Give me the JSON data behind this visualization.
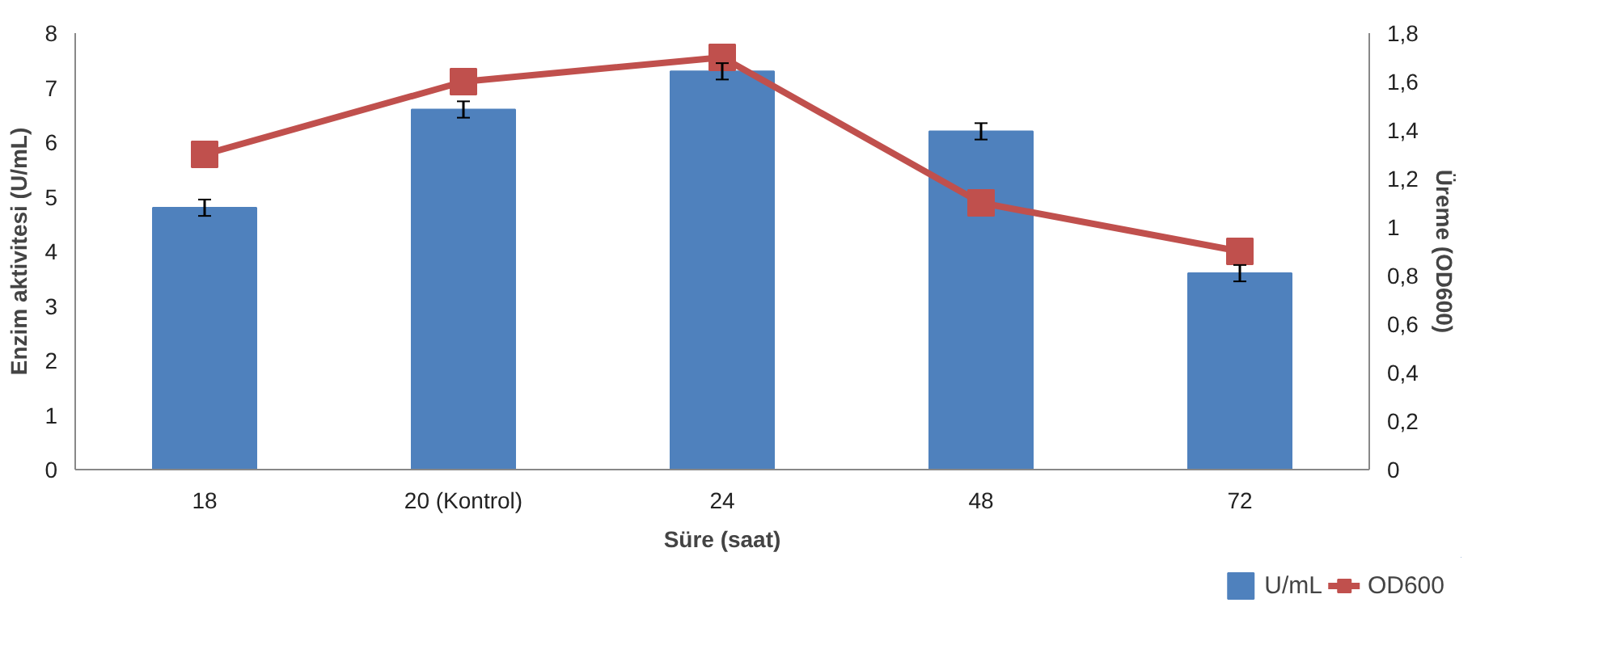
{
  "chart_data": {
    "type": "bar",
    "xlabel": "Süre (saat)",
    "ylabel": "Enzim aktivitesi (U/mL)",
    "y2label": "Üreme (OD600)",
    "categories": [
      "18",
      "20 (Kontrol)",
      "24",
      "48",
      "72"
    ],
    "series": [
      {
        "name": "U/mL",
        "color": "#4f81bd",
        "values": [
          4.8,
          6.6,
          7.3,
          6.2,
          3.6
        ],
        "errors": [
          0.15,
          0.15,
          0.15,
          0.15,
          0.15
        ]
      },
      {
        "name": "OD600",
        "type": "line",
        "axis": "y2",
        "color": "#c0504d",
        "marker": "square",
        "values": [
          1.3,
          1.6,
          1.7,
          1.1,
          0.9
        ]
      }
    ],
    "ylim": [
      0,
      8
    ],
    "yticks": [
      0,
      1,
      2,
      3,
      4,
      5,
      6,
      7,
      8
    ],
    "y2lim": [
      0,
      1.8
    ],
    "y2ticks": [
      0,
      {
        "value": 0.2,
        "label": "0,2"
      },
      {
        "value": 0.4,
        "label": "0,4"
      },
      {
        "value": 0.6,
        "label": "0,6"
      },
      {
        "value": 0.8,
        "label": "0,8"
      },
      1,
      {
        "value": 1.2,
        "label": "1,2"
      },
      {
        "value": 1.4,
        "label": "1,4"
      },
      {
        "value": 1.6,
        "label": "1,6"
      },
      {
        "value": 1.8,
        "label": "1,8"
      }
    ],
    "grid": false,
    "legend": "bottom right"
  }
}
